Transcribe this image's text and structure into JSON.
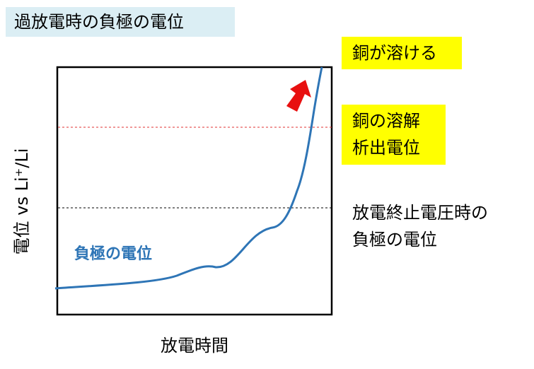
{
  "title": "過放電時の負極の電位",
  "annotations": {
    "copper_dissolves": "銅が溶ける",
    "copper_potential": [
      "銅の溶解",
      "析出電位"
    ],
    "cutoff_potential": [
      "放電終止電圧時の",
      "負極の電位"
    ]
  },
  "curve_label": "負極の電位",
  "axes": {
    "x_label": "放電時間",
    "y_label": "電位 vs Li⁺/Li"
  }
}
